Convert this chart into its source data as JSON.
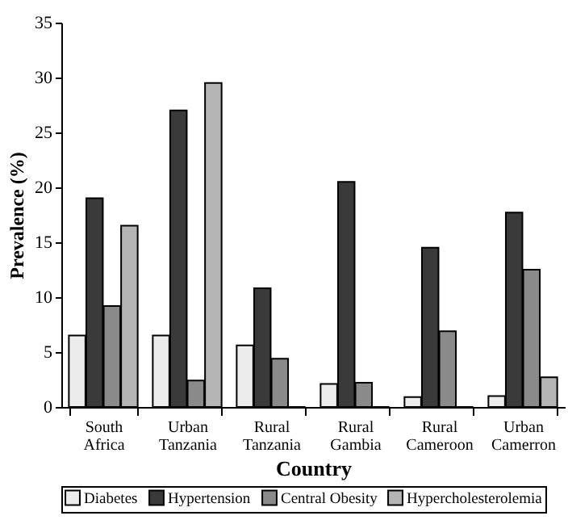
{
  "chart_data": {
    "type": "bar",
    "xlabel": "Country",
    "ylabel": "Prevalence (%)",
    "categories": [
      "South\nAfrica",
      "Urban\nTanzania",
      "Rural\nTanzania",
      "Rural\nGambia",
      "Rural\nCameroon",
      "Urban\nCamerron"
    ],
    "series": [
      {
        "name": "Diabetes",
        "color": "#ececec",
        "values": [
          6.5,
          6.5,
          5.6,
          2.1,
          0.9,
          1.0
        ]
      },
      {
        "name": "Hypertension",
        "color": "#3a3a3a",
        "values": [
          19,
          27,
          10.8,
          20.5,
          14.5,
          17.7
        ]
      },
      {
        "name": "Central Obesity",
        "color": "#8a8a8a",
        "values": [
          9.2,
          2.4,
          4.4,
          2.2,
          6.9,
          12.5
        ]
      },
      {
        "name": "Hypercholesterolemia",
        "color": "#b5b5b5",
        "values": [
          16.5,
          29.5,
          0,
          0,
          0,
          2.7
        ]
      }
    ],
    "ylim": [
      0,
      35
    ],
    "yticks": [
      0,
      5,
      10,
      15,
      20,
      25,
      30,
      35
    ],
    "grid": false,
    "legend": "bottom"
  }
}
